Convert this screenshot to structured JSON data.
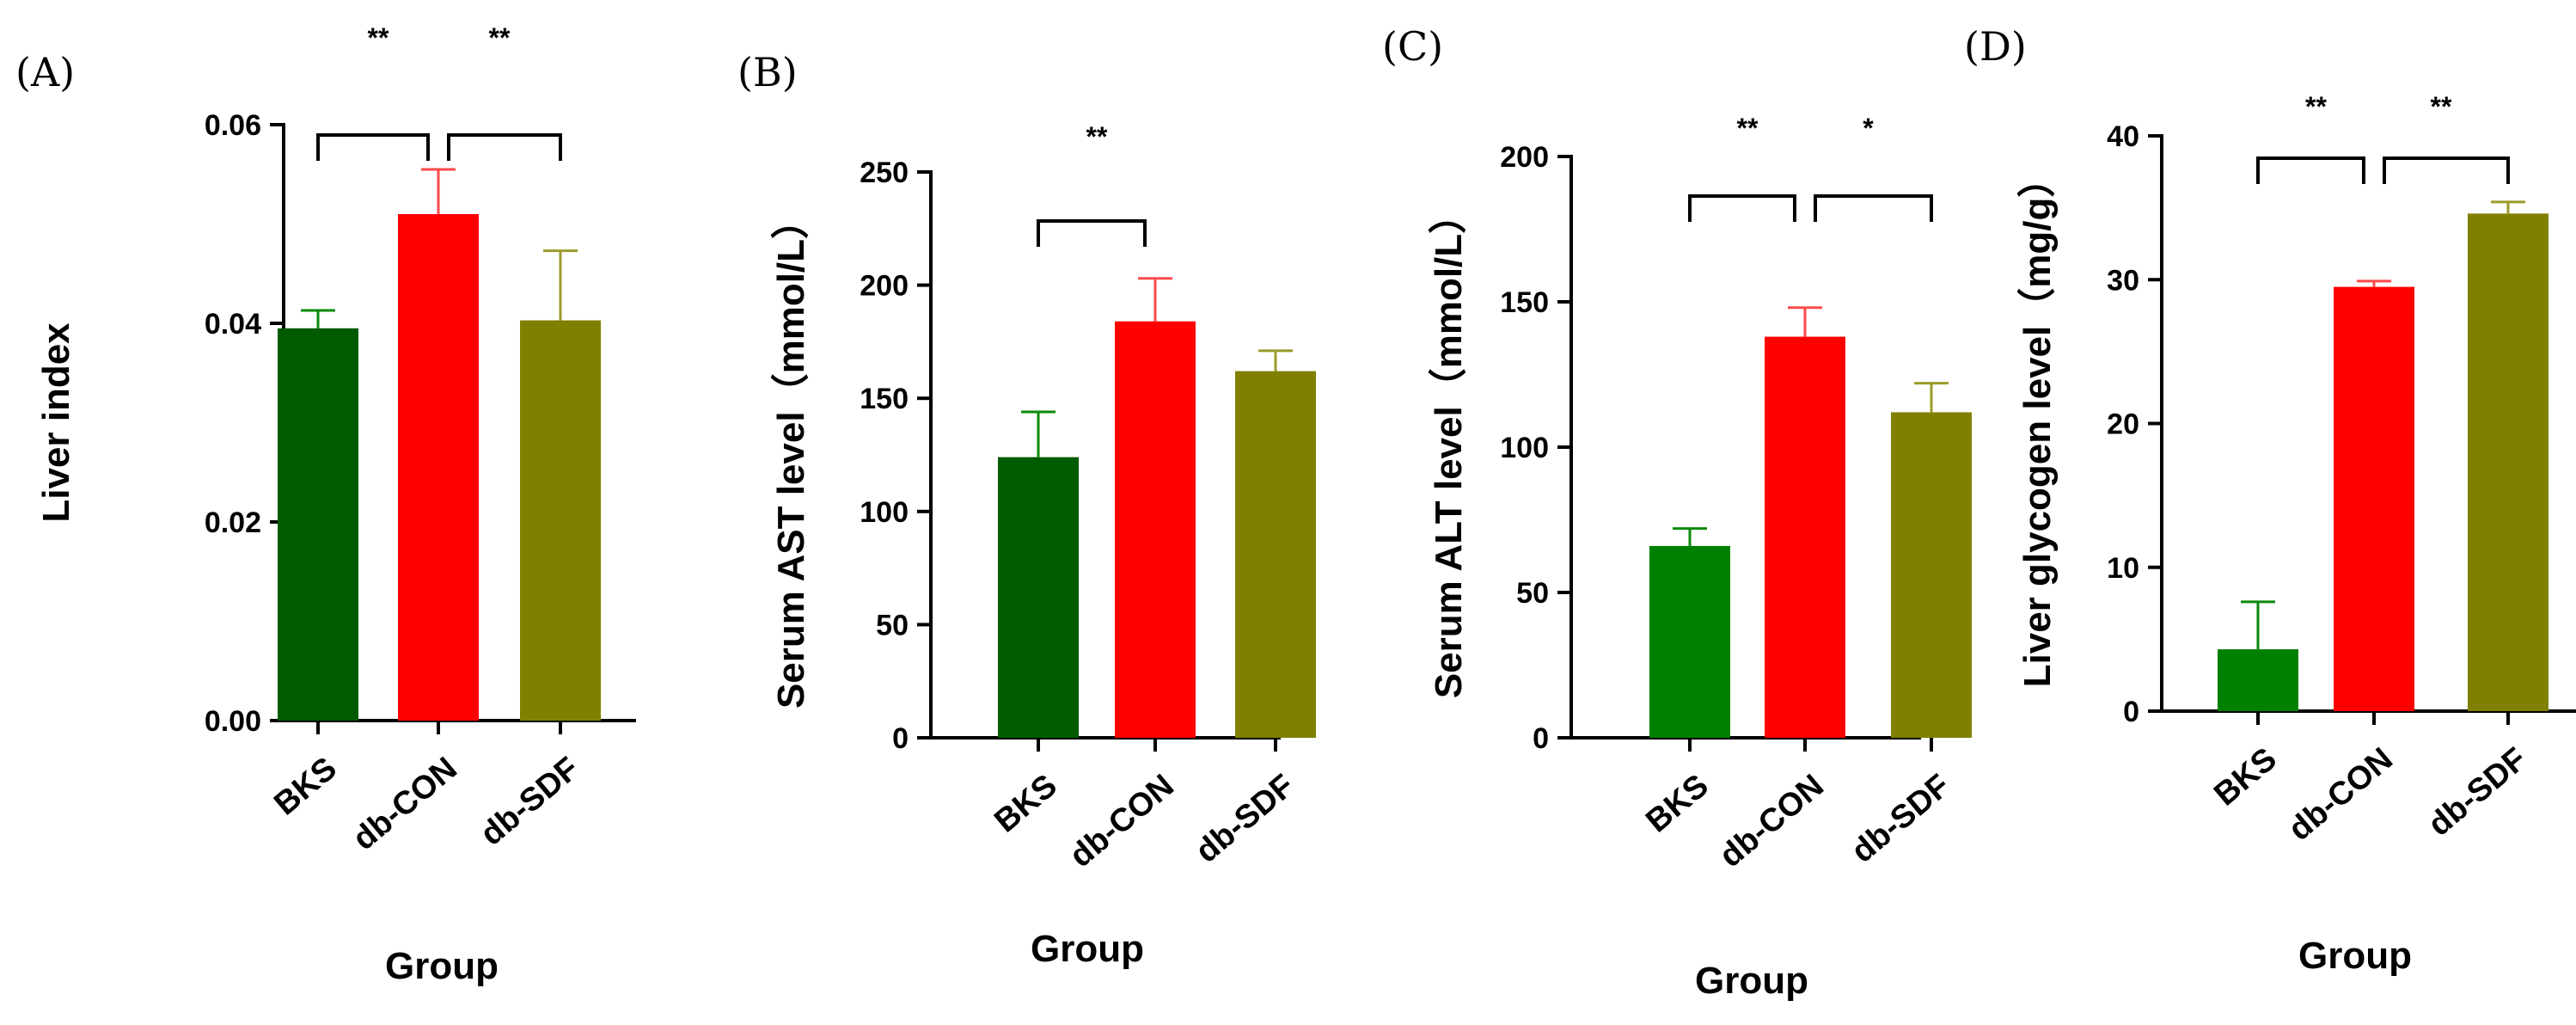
{
  "colors": {
    "BKS_A": "#005a00",
    "BKS_B": "#005a00",
    "BKS_C": "#008000",
    "BKS_D": "#008000",
    "db-CON": "#ff0000",
    "db-SDF": "#808000",
    "err_BKS": "#0a8a0a",
    "err_db-CON": "#ff4a4a",
    "err_db-SDF": "#9b9b2a"
  },
  "chart_data": [
    {
      "type": "bar",
      "panel": "(A)",
      "title": "",
      "xlabel": "Group",
      "ylabel": "Liver index",
      "categories": [
        "BKS",
        "db-CON",
        "db-SDF"
      ],
      "values": [
        0.0395,
        0.051,
        0.0403
      ],
      "errors": [
        0.0018,
        0.0045,
        0.007
      ],
      "ylim": [
        0,
        0.06
      ],
      "yticks": [
        "0.00",
        "0.02",
        "0.04",
        "0.06"
      ],
      "significance": [
        {
          "from": 0,
          "to": 1,
          "label": "**"
        },
        {
          "from": 1,
          "to": 2,
          "label": "**"
        }
      ]
    },
    {
      "type": "bar",
      "panel": "(B)",
      "title": "",
      "xlabel": "Group",
      "ylabel": "Serum AST level（mmol/L）",
      "categories": [
        "BKS",
        "db-CON",
        "db-SDF"
      ],
      "values": [
        124,
        184,
        162
      ],
      "errors": [
        20,
        19,
        9
      ],
      "ylim": [
        0,
        250
      ],
      "yticks": [
        "0",
        "50",
        "100",
        "150",
        "200",
        "250"
      ],
      "significance": [
        {
          "from": 0,
          "to": 1,
          "label": "**"
        }
      ]
    },
    {
      "type": "bar",
      "panel": "(C)",
      "title": "",
      "xlabel": "Group",
      "ylabel": "Serum ALT level（mmol/L）",
      "categories": [
        "BKS",
        "db-CON",
        "db-SDF"
      ],
      "values": [
        66,
        138,
        112
      ],
      "errors": [
        6,
        10,
        10
      ],
      "ylim": [
        0,
        200
      ],
      "yticks": [
        "0",
        "50",
        "100",
        "150",
        "200"
      ],
      "significance": [
        {
          "from": 0,
          "to": 1,
          "label": "**"
        },
        {
          "from": 1,
          "to": 2,
          "label": "*"
        }
      ]
    },
    {
      "type": "bar",
      "panel": "(D)",
      "title": "",
      "xlabel": "Group",
      "ylabel": "Liver glycogen level（mg/g）",
      "categories": [
        "BKS",
        "db-CON",
        "db-SDF"
      ],
      "values": [
        4.3,
        29.5,
        34.6
      ],
      "errors": [
        3.3,
        0.4,
        0.8
      ],
      "ylim": [
        0,
        40
      ],
      "yticks": [
        "0",
        "10",
        "20",
        "30",
        "40"
      ],
      "significance": [
        {
          "from": 0,
          "to": 1,
          "label": "**"
        },
        {
          "from": 1,
          "to": 2,
          "label": "**"
        }
      ]
    }
  ]
}
